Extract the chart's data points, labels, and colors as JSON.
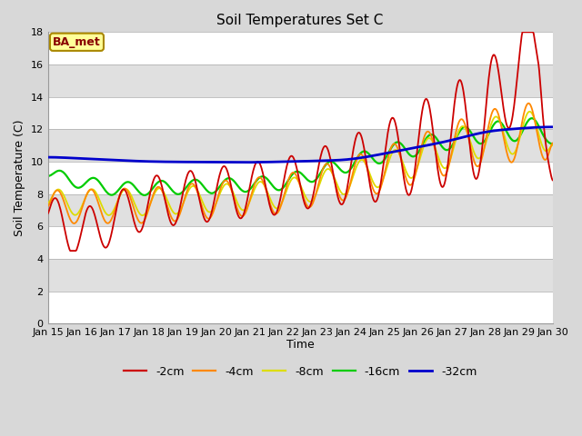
{
  "title": "Soil Temperatures Set C",
  "xlabel": "Time",
  "ylabel": "Soil Temperature (C)",
  "ylim": [
    0,
    18
  ],
  "yticks": [
    0,
    2,
    4,
    6,
    8,
    10,
    12,
    14,
    16,
    18
  ],
  "legend_labels": [
    "-2cm",
    "-4cm",
    "-8cm",
    "-16cm",
    "-32cm"
  ],
  "legend_colors": [
    "#cc0000",
    "#ff8800",
    "#dddd00",
    "#00cc00",
    "#0000cc"
  ],
  "bg_color": "#d8d8d8",
  "plot_bg_color": "#d8d8d8",
  "annotation_text": "BA_met",
  "annotation_bg": "#ffff99",
  "annotation_border": "#aa8800",
  "annotation_text_color": "#880000",
  "x_tick_labels": [
    "Jan 15",
    "Jan 16",
    "Jan 17",
    "Jan 18",
    "Jan 19",
    "Jan 20",
    "Jan 21",
    "Jan 22",
    "Jan 23",
    "Jan 24",
    "Jan 25",
    "Jan 26",
    "Jan 27",
    "Jan 28",
    "Jan 29",
    "Jan 30"
  ],
  "grid_colors": [
    "#c0c0c0",
    "#e0e0e0"
  ],
  "num_points": 721
}
